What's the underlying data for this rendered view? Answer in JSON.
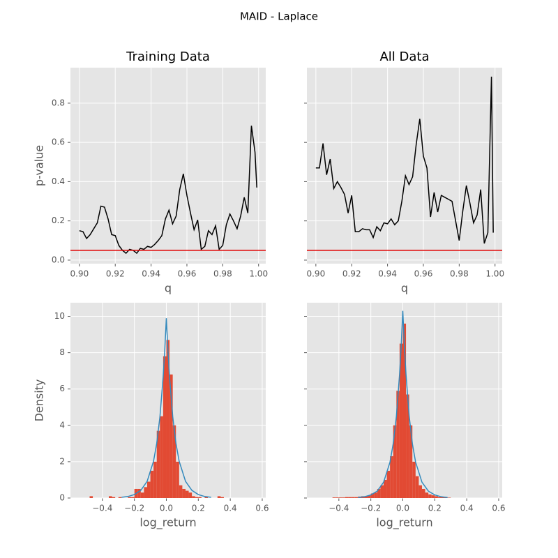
{
  "title": "MAID - Laplace",
  "chart_data": [
    {
      "type": "line",
      "title": "Training Data",
      "xlabel": "q",
      "ylabel": "p-value",
      "x": [
        0.9,
        0.902,
        0.904,
        0.906,
        0.908,
        0.91,
        0.912,
        0.914,
        0.916,
        0.918,
        0.92,
        0.922,
        0.924,
        0.926,
        0.928,
        0.93,
        0.932,
        0.934,
        0.936,
        0.938,
        0.94,
        0.942,
        0.944,
        0.946,
        0.948,
        0.95,
        0.952,
        0.954,
        0.956,
        0.958,
        0.96,
        0.962,
        0.964,
        0.966,
        0.968,
        0.97,
        0.972,
        0.974,
        0.976,
        0.978,
        0.98,
        0.982,
        0.984,
        0.986,
        0.988,
        0.99,
        0.992,
        0.994,
        0.996,
        0.998,
        0.999
      ],
      "series": [
        {
          "color": "#000000",
          "values": [
            0.15,
            0.145,
            0.11,
            0.13,
            0.16,
            0.19,
            0.275,
            0.27,
            0.21,
            0.13,
            0.125,
            0.075,
            0.05,
            0.035,
            0.055,
            0.05,
            0.035,
            0.06,
            0.055,
            0.07,
            0.065,
            0.08,
            0.1,
            0.125,
            0.21,
            0.255,
            0.185,
            0.225,
            0.36,
            0.44,
            0.33,
            0.24,
            0.155,
            0.205,
            0.055,
            0.07,
            0.15,
            0.13,
            0.175,
            0.055,
            0.075,
            0.18,
            0.235,
            0.2,
            0.16,
            0.225,
            0.32,
            0.24,
            0.685,
            0.55,
            0.37
          ]
        }
      ],
      "reference_line": {
        "value": 0.05,
        "color": "#e00000"
      },
      "xlim": [
        0.895,
        1.004
      ],
      "ylim": [
        -0.018,
        0.981
      ],
      "xticks": [
        {
          "value": 0.9,
          "label": "0.90"
        },
        0.92,
        0.94,
        0.96,
        0.98,
        {
          "value": 1,
          "label": "1.00"
        }
      ],
      "yticks": [
        {
          "value": 0,
          "label": "0.0"
        },
        0.2,
        0.4,
        0.6,
        0.8
      ],
      "show_ytick_labels": true,
      "grid": true
    },
    {
      "type": "line",
      "title": "All Data",
      "xlabel": "q",
      "x": [
        0.9,
        0.902,
        0.904,
        0.906,
        0.908,
        0.91,
        0.912,
        0.914,
        0.916,
        0.918,
        0.92,
        0.922,
        0.924,
        0.926,
        0.928,
        0.93,
        0.932,
        0.934,
        0.936,
        0.938,
        0.94,
        0.942,
        0.944,
        0.946,
        0.948,
        0.95,
        0.952,
        0.954,
        0.956,
        0.958,
        0.96,
        0.962,
        0.964,
        0.966,
        0.968,
        0.97,
        0.972,
        0.974,
        0.976,
        0.978,
        0.98,
        0.982,
        0.984,
        0.986,
        0.988,
        0.99,
        0.992,
        0.994,
        0.996,
        0.998,
        0.999
      ],
      "series": [
        {
          "color": "#000000",
          "values": [
            0.47,
            0.47,
            0.595,
            0.435,
            0.515,
            0.365,
            0.4,
            0.37,
            0.335,
            0.24,
            0.33,
            0.145,
            0.145,
            0.16,
            0.155,
            0.155,
            0.115,
            0.17,
            0.15,
            0.19,
            0.185,
            0.21,
            0.18,
            0.2,
            0.3,
            0.43,
            0.385,
            0.425,
            0.59,
            0.72,
            0.53,
            0.47,
            0.22,
            0.345,
            0.245,
            0.33,
            0.32,
            0.31,
            0.3,
            0.2,
            0.1,
            0.25,
            0.38,
            0.29,
            0.19,
            0.23,
            0.36,
            0.085,
            0.14,
            0.935,
            0.14
          ]
        }
      ],
      "reference_line": {
        "value": 0.05,
        "color": "#e00000"
      },
      "xlim": [
        0.895,
        1.004
      ],
      "ylim": [
        -0.018,
        0.981
      ],
      "xticks": [
        {
          "value": 0.9,
          "label": "0.90"
        },
        0.92,
        0.94,
        0.96,
        0.98,
        {
          "value": 1,
          "label": "1.00"
        }
      ],
      "yticks": [
        0,
        0.2,
        0.4,
        0.6,
        0.8
      ],
      "show_ytick_labels": false,
      "grid": true
    },
    {
      "type": "histogram",
      "xlabel": "log_return",
      "ylabel": "Density",
      "color": "#E24A33",
      "bins": [
        -0.48,
        -0.46,
        -0.44,
        -0.42,
        -0.4,
        -0.38,
        -0.36,
        -0.34,
        -0.32,
        -0.3,
        -0.28,
        -0.26,
        -0.24,
        -0.22,
        -0.2,
        -0.18,
        -0.16,
        -0.14,
        -0.12,
        -0.1,
        -0.08,
        -0.06,
        -0.04,
        -0.02,
        0,
        0.02,
        0.04,
        0.06,
        0.08,
        0.1,
        0.12,
        0.14,
        0.16,
        0.18,
        0.2,
        0.22,
        0.24,
        0.26,
        0.28,
        0.3,
        0.32,
        0.34,
        0.36
      ],
      "values": [
        0.1,
        0,
        0,
        0,
        0,
        0,
        0.1,
        0.05,
        0,
        0.05,
        0,
        0,
        0.05,
        0.05,
        0.5,
        0.5,
        0.3,
        0.6,
        0.9,
        1.5,
        2.0,
        3.7,
        4.5,
        7.8,
        8.7,
        6.8,
        4.0,
        2.0,
        0.7,
        0.5,
        0.4,
        0.3,
        0.1,
        0.05,
        0.05,
        0,
        0.05,
        0,
        0,
        0,
        0.1,
        0.05
      ],
      "density_curve": {
        "color": "#348ABD",
        "x": [
          -0.28,
          -0.24,
          -0.2,
          -0.16,
          -0.12,
          -0.08,
          -0.06,
          -0.04,
          -0.02,
          -0.01,
          0,
          0.01,
          0.02,
          0.04,
          0.06,
          0.08,
          0.12,
          0.16,
          0.2,
          0.24,
          0.28
        ],
        "values": [
          0.04,
          0.085,
          0.19,
          0.42,
          0.92,
          2.03,
          3.02,
          4.48,
          6.66,
          8.12,
          9.9,
          8.12,
          6.66,
          4.48,
          3.02,
          2.03,
          0.92,
          0.42,
          0.19,
          0.085,
          0.04
        ]
      },
      "xlim": [
        -0.6,
        0.622
      ],
      "ylim": [
        0,
        10.75
      ],
      "xticks": [
        {
          "value": -0.4,
          "label": "−0.4"
        },
        {
          "value": -0.2,
          "label": "−0.2"
        },
        {
          "value": 0,
          "label": "0.0"
        },
        0.2,
        0.4,
        0.6
      ],
      "yticks": [
        0,
        2,
        4,
        6,
        8,
        10
      ],
      "show_ytick_labels": true,
      "grid": true
    },
    {
      "type": "histogram",
      "xlabel": "log_return",
      "color": "#E24A33",
      "bins": [
        -0.48,
        -0.46,
        -0.44,
        -0.42,
        -0.4,
        -0.38,
        -0.36,
        -0.34,
        -0.32,
        -0.3,
        -0.28,
        -0.26,
        -0.24,
        -0.22,
        -0.2,
        -0.18,
        -0.16,
        -0.14,
        -0.12,
        -0.1,
        -0.08,
        -0.06,
        -0.04,
        -0.02,
        0,
        0.02,
        0.04,
        0.06,
        0.08,
        0.1,
        0.12,
        0.14,
        0.16,
        0.18,
        0.2,
        0.22,
        0.24,
        0.26,
        0.28,
        0.3,
        0.32,
        0.34,
        0.36
      ],
      "values": [
        0,
        0,
        0.03,
        0.03,
        0.03,
        0.03,
        0.05,
        0.05,
        0.05,
        0.05,
        0.08,
        0.1,
        0.1,
        0.15,
        0.25,
        0.3,
        0.5,
        0.7,
        1.0,
        1.5,
        2.3,
        4.0,
        5.9,
        8.5,
        9.6,
        5.7,
        4.0,
        2.0,
        1.2,
        0.7,
        0.5,
        0.3,
        0.2,
        0.15,
        0.1,
        0.05,
        0.05,
        0.03,
        0.02,
        0,
        0,
        0
      ],
      "density_curve": {
        "color": "#348ABD",
        "x": [
          -0.28,
          -0.24,
          -0.2,
          -0.16,
          -0.12,
          -0.08,
          -0.06,
          -0.04,
          -0.02,
          -0.01,
          0,
          0.01,
          0.02,
          0.04,
          0.06,
          0.08,
          0.12,
          0.16,
          0.2,
          0.24,
          0.28
        ],
        "values": [
          0.03,
          0.07,
          0.17,
          0.38,
          0.87,
          1.98,
          2.99,
          4.51,
          6.82,
          8.38,
          10.3,
          8.38,
          6.82,
          4.51,
          2.99,
          1.98,
          0.87,
          0.38,
          0.17,
          0.07,
          0.03
        ]
      },
      "xlim": [
        -0.6,
        0.622
      ],
      "ylim": [
        0,
        10.75
      ],
      "xticks": [
        {
          "value": -0.4,
          "label": "−0.4"
        },
        {
          "value": -0.2,
          "label": "−0.2"
        },
        {
          "value": 0,
          "label": "0.0"
        },
        0.2,
        0.4,
        0.6
      ],
      "yticks": [
        0,
        2,
        4,
        6,
        8,
        10
      ],
      "show_ytick_labels": false,
      "grid": true
    }
  ]
}
